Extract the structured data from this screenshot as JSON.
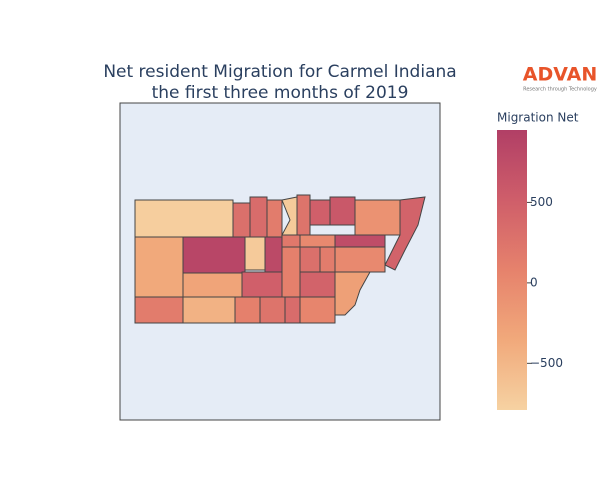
{
  "chart_data": {
    "type": "choropleth",
    "title": [
      "Net resident Migration for Carmel Indiana",
      "the first three months of 2019"
    ],
    "colorbar_title": "Migration Net",
    "zlim": [
      -790,
      950
    ],
    "zticks": [
      500,
      0,
      {
        "value": -500,
        "label": "−500"
      }
    ],
    "colorscale": [
      "#f6d2a2",
      "#f1a97b",
      "#e6826c",
      "#cf5e6a",
      "#b13f66"
    ],
    "values": [
      -750,
      -350,
      850,
      -300,
      -700,
      800,
      500,
      300,
      350,
      150,
      -700,
      250,
      500,
      600,
      -100,
      450,
      200,
      0,
      750,
      100,
      300,
      150,
      0,
      450,
      -250,
      150,
      -450,
      100,
      250,
      350,
      50
    ],
    "logo": {
      "name": "ADVAN",
      "tagline": "Research through Technology"
    }
  }
}
